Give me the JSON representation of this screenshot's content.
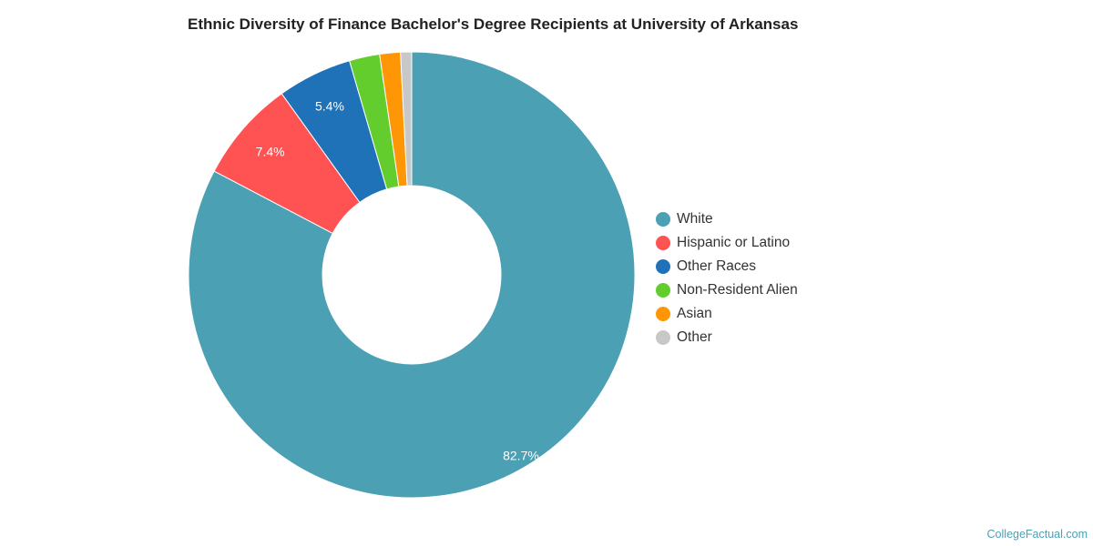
{
  "chart_data": {
    "type": "pie",
    "donut": true,
    "title": "Ethnic Diversity of Finance Bachelor's Degree Recipients at University of Arkansas",
    "legend_position": "right",
    "slices": [
      {
        "label": "White",
        "value": 82.7,
        "color": "#4ba0b3",
        "data_label": "82.7%"
      },
      {
        "label": "Hispanic or Latino",
        "value": 7.4,
        "color": "#ff5353",
        "data_label": "7.4%"
      },
      {
        "label": "Other Races",
        "value": 5.4,
        "color": "#1f72b8",
        "data_label": "5.4%"
      },
      {
        "label": "Non-Resident Alien",
        "value": 2.2,
        "color": "#62cd2c",
        "data_label": ""
      },
      {
        "label": "Asian",
        "value": 1.5,
        "color": "#ff9606",
        "data_label": ""
      },
      {
        "label": "Other",
        "value": 0.8,
        "color": "#c8c8c8",
        "data_label": ""
      }
    ]
  },
  "watermark": "CollegeFactual.com"
}
